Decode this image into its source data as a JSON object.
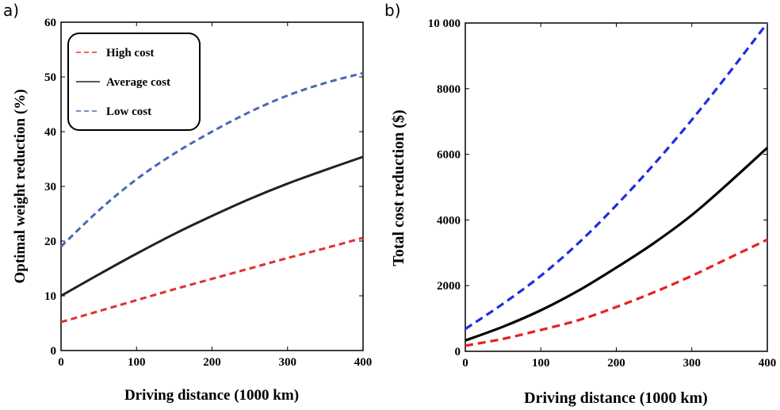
{
  "panels": {
    "a": {
      "label": "a)"
    },
    "b": {
      "label": "b)"
    }
  },
  "chart_data": [
    {
      "type": "line",
      "xlabel": "Driving distance (1000 km)",
      "ylabel": "Optimal weight reduction (%)",
      "xlim": [
        0,
        400
      ],
      "ylim": [
        0,
        60
      ],
      "xticks": [
        "0",
        "100",
        "200",
        "300",
        "400"
      ],
      "yticks": [
        "0",
        "10",
        "20",
        "30",
        "40",
        "50",
        "60"
      ],
      "grid": false,
      "legend_position": "top-left",
      "x": [
        0,
        50,
        100,
        150,
        200,
        250,
        300,
        350,
        400
      ],
      "series": [
        {
          "name": "High cost",
          "color": "#e03030",
          "dash": "dashed",
          "values": [
            5.2,
            7.2,
            9.2,
            11.2,
            13.1,
            15.0,
            16.9,
            18.7,
            20.6
          ]
        },
        {
          "name": "Average cost",
          "color": "#222222",
          "dash": "solid",
          "values": [
            10.0,
            13.9,
            17.7,
            21.3,
            24.6,
            27.7,
            30.5,
            33.0,
            35.4
          ]
        },
        {
          "name": "Low cost",
          "color": "#4a68b8",
          "dash": "dashed",
          "values": [
            19.0,
            25.6,
            31.3,
            36.0,
            40.0,
            43.6,
            46.6,
            48.9,
            50.7
          ]
        }
      ]
    },
    {
      "type": "line",
      "xlabel": "Driving distance (1000 km)",
      "ylabel": "Total cost reduction ($)",
      "xlim": [
        0,
        400
      ],
      "ylim": [
        0,
        10000
      ],
      "xticks": [
        "0",
        "100",
        "200",
        "300",
        "400"
      ],
      "yticks": [
        "0",
        "2000",
        "4000",
        "6000",
        "8000",
        "10 000"
      ],
      "grid": false,
      "legend_position": "none",
      "x": [
        0,
        50,
        100,
        150,
        200,
        250,
        300,
        350,
        400
      ],
      "series": [
        {
          "color": "#1f2ee0",
          "dash": "dashed",
          "values": [
            680,
            1450,
            2300,
            3300,
            4450,
            5700,
            7050,
            8500,
            10000
          ]
        },
        {
          "color": "#000000",
          "dash": "solid",
          "values": [
            330,
            750,
            1250,
            1850,
            2550,
            3300,
            4150,
            5150,
            6200
          ]
        },
        {
          "color": "#e82020",
          "dash": "dashed",
          "values": [
            170,
            380,
            650,
            950,
            1350,
            1800,
            2300,
            2850,
            3400
          ]
        }
      ]
    }
  ]
}
